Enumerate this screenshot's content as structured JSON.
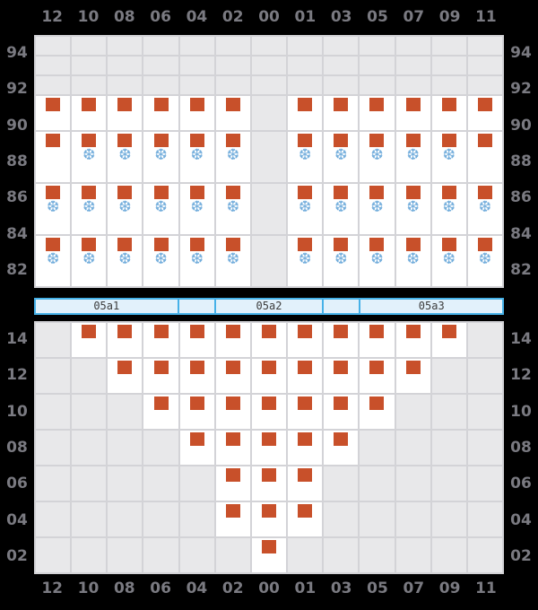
{
  "colors": {
    "background": "#000000",
    "grid_line": "#d3d3d7",
    "cell_empty": "#e8e8ea",
    "cell_occupied": "#ffffff",
    "container_marker": "#c8502a",
    "reefer_icon": "#74aedc",
    "axis_label": "#7a7a81",
    "hatch_fill": "#e2f1fb",
    "hatch_border": "#46b1e8",
    "hatch_label": "#3c3c3c"
  },
  "icons": {
    "reefer_snowflake_glyph": "❆"
  },
  "chart_data": {
    "type": "heatmap",
    "description": "Ship stowage bay plan: deck tiers above hatch covers, hold tiers below; C = container marker (orange square), R = container with reefer mark (orange square + blue snowflake), . = empty slot",
    "columns": [
      "12",
      "10",
      "08",
      "06",
      "04",
      "02",
      "00",
      "01",
      "03",
      "05",
      "07",
      "09",
      "11"
    ],
    "deck": {
      "tiers": [
        "94",
        "92",
        "90",
        "88",
        "86",
        "84",
        "82"
      ],
      "rows": [
        [
          ".",
          ".",
          ".",
          ".",
          ".",
          ".",
          ".",
          ".",
          ".",
          ".",
          ".",
          ".",
          "."
        ],
        [
          ".",
          ".",
          ".",
          ".",
          ".",
          ".",
          ".",
          ".",
          ".",
          ".",
          ".",
          ".",
          "."
        ],
        [
          ".",
          ".",
          ".",
          ".",
          ".",
          ".",
          ".",
          ".",
          ".",
          ".",
          ".",
          ".",
          "."
        ],
        [
          "C",
          "C",
          "C",
          "C",
          "C",
          "C",
          ".",
          "C",
          "C",
          "C",
          "C",
          "C",
          "C"
        ],
        [
          "C",
          "R",
          "R",
          "R",
          "R",
          "R",
          ".",
          "R",
          "R",
          "R",
          "R",
          "R",
          "C"
        ],
        [
          "R",
          "R",
          "R",
          "R",
          "R",
          "R",
          ".",
          "R",
          "R",
          "R",
          "R",
          "R",
          "R"
        ],
        [
          "R",
          "R",
          "R",
          "R",
          "R",
          "R",
          ".",
          "R",
          "R",
          "R",
          "R",
          "R",
          "R"
        ]
      ]
    },
    "hatch_segments": [
      {
        "label": "05a1",
        "span_columns": 4
      },
      {
        "label": "",
        "span_columns": 1
      },
      {
        "label": "05a2",
        "span_columns": 3
      },
      {
        "label": "",
        "span_columns": 1
      },
      {
        "label": "05a3",
        "span_columns": 4
      }
    ],
    "hold": {
      "tiers": [
        "14",
        "12",
        "10",
        "08",
        "06",
        "04",
        "02"
      ],
      "rows": [
        [
          ".",
          "C",
          "C",
          "C",
          "C",
          "C",
          "C",
          "C",
          "C",
          "C",
          "C",
          "C",
          "."
        ],
        [
          ".",
          ".",
          "C",
          "C",
          "C",
          "C",
          "C",
          "C",
          "C",
          "C",
          "C",
          ".",
          "."
        ],
        [
          ".",
          ".",
          ".",
          "C",
          "C",
          "C",
          "C",
          "C",
          "C",
          "C",
          ".",
          ".",
          "."
        ],
        [
          ".",
          ".",
          ".",
          ".",
          "C",
          "C",
          "C",
          "C",
          "C",
          ".",
          ".",
          ".",
          "."
        ],
        [
          ".",
          ".",
          ".",
          ".",
          ".",
          "C",
          "C",
          "C",
          ".",
          ".",
          ".",
          ".",
          "."
        ],
        [
          ".",
          ".",
          ".",
          ".",
          ".",
          "C",
          "C",
          "C",
          ".",
          ".",
          ".",
          ".",
          "."
        ],
        [
          ".",
          ".",
          ".",
          ".",
          ".",
          ".",
          "C",
          ".",
          ".",
          ".",
          ".",
          ".",
          "."
        ]
      ]
    },
    "cell_codes": {
      "C": "container",
      "R": "reefer-container",
      ".": "empty"
    }
  }
}
